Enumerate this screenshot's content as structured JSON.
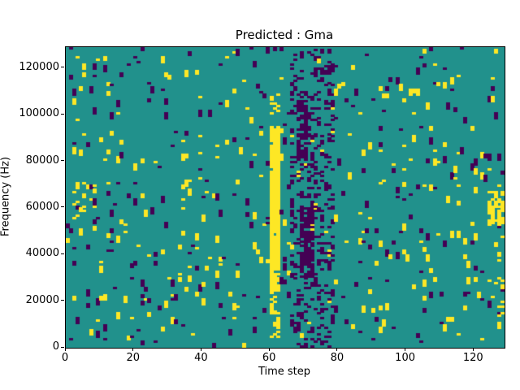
{
  "figure": {
    "background": "#ffffff"
  },
  "chart_data": {
    "type": "heatmap",
    "title": "Predicted : Gma",
    "xlabel": "Time step",
    "ylabel": "Frequency (Hz)",
    "x_max": 129,
    "y_max": 129000,
    "x_ticks": {
      "values": [
        0,
        20,
        40,
        60,
        80,
        100,
        120
      ],
      "labels": [
        "0",
        "20",
        "40",
        "60",
        "80",
        "100",
        "120"
      ]
    },
    "y_ticks": {
      "values": [
        0,
        20000,
        40000,
        60000,
        80000,
        100000,
        120000
      ],
      "labels": [
        "0",
        "20000",
        "40000",
        "60000",
        "80000",
        "100000",
        "120000"
      ]
    },
    "grid": {
      "cols": 129,
      "rows": 129
    },
    "colors": {
      "background": "#21918c",
      "yellow": "#fde725",
      "purple": "#440154",
      "axes": "#000000"
    },
    "value_color_map": [
      "#21918c",
      "#fde725",
      "#440154"
    ],
    "legend": "none",
    "noise": {
      "seed": 20,
      "yellow_density": 0.019,
      "purple_density": 0.017,
      "max_run": 3
    },
    "patches": [
      {
        "name": "yellow-band-main",
        "value": 1,
        "cols": [
          60,
          62
        ],
        "rows": [
          24,
          93
        ],
        "density": 0.97
      },
      {
        "name": "yellow-band-lower",
        "value": 1,
        "cols": [
          60,
          62
        ],
        "rows": [
          4,
          23
        ],
        "density": 0.5
      },
      {
        "name": "yellow-band-upper",
        "value": 1,
        "cols": [
          60,
          62
        ],
        "rows": [
          94,
          108
        ],
        "density": 0.3
      },
      {
        "name": "purple-field",
        "value": 2,
        "cols": [
          66,
          78
        ],
        "rows": [
          0,
          127
        ],
        "density": 0.22
      },
      {
        "name": "purple-streak",
        "value": 2,
        "cols": [
          69,
          72
        ],
        "rows": [
          30,
          60
        ],
        "density": 0.75
      },
      {
        "name": "purple-streak-upper",
        "value": 2,
        "cols": [
          68,
          71
        ],
        "rows": [
          78,
          105
        ],
        "density": 0.45
      },
      {
        "name": "right-yellow-patch",
        "value": 1,
        "cols": [
          124,
          128
        ],
        "rows": [
          52,
          66
        ],
        "density": 0.55
      },
      {
        "name": "right-edge-yellow",
        "value": 1,
        "cols": [
          127,
          128
        ],
        "rows": [
          8,
          40
        ],
        "density": 0.3
      },
      {
        "name": "left-yellow-cluster",
        "value": 1,
        "cols": [
          2,
          8
        ],
        "rows": [
          55,
          70
        ],
        "density": 0.22
      }
    ]
  }
}
